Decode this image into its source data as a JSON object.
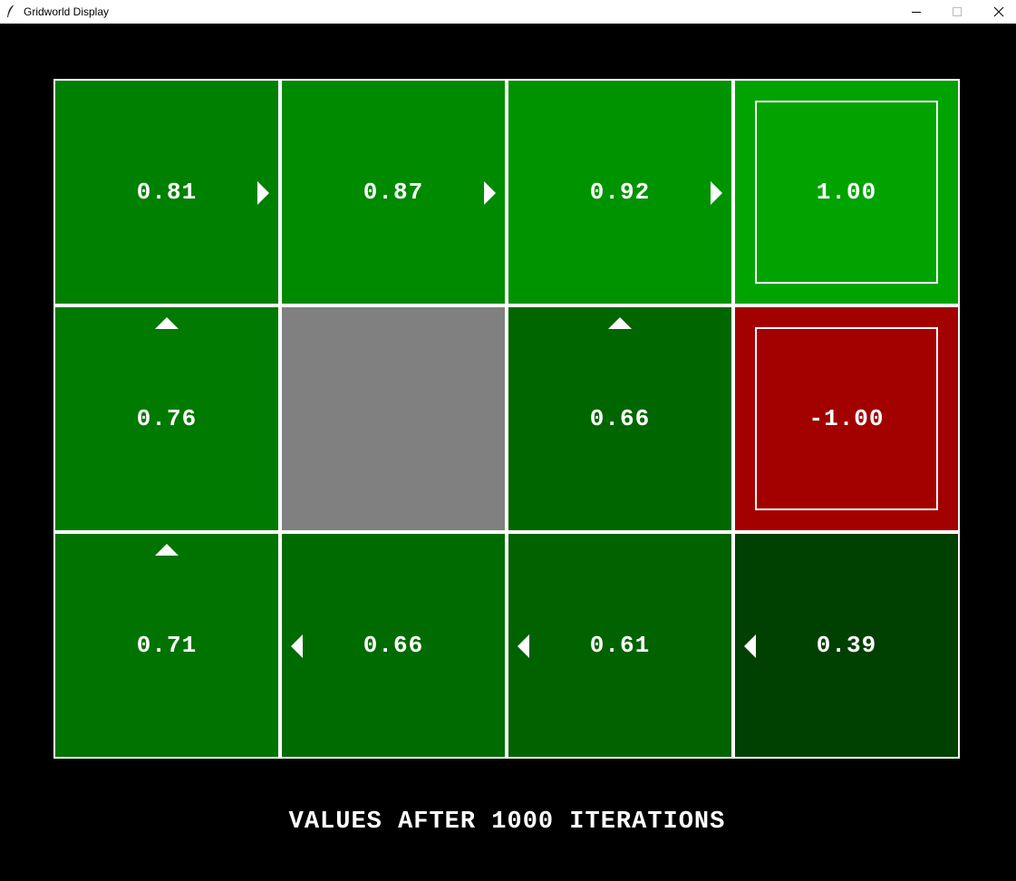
{
  "window": {
    "title": "Gridworld Display",
    "controls": [
      "minimize",
      "maximize",
      "close"
    ]
  },
  "grid": {
    "rows": 3,
    "cols": 4,
    "cells": [
      {
        "row": 0,
        "col": 0,
        "value": "0.81",
        "policy": "right",
        "color": "#008000"
      },
      {
        "row": 0,
        "col": 1,
        "value": "0.87",
        "policy": "right",
        "color": "#008a00"
      },
      {
        "row": 0,
        "col": 2,
        "value": "0.92",
        "policy": "right",
        "color": "#009300"
      },
      {
        "row": 0,
        "col": 3,
        "value": "1.00",
        "policy": "terminal",
        "color": "#00a300"
      },
      {
        "row": 1,
        "col": 0,
        "value": "0.76",
        "policy": "up",
        "color": "#007a00"
      },
      {
        "row": 1,
        "col": 1,
        "value": "",
        "policy": "wall",
        "color": "#808080"
      },
      {
        "row": 1,
        "col": 2,
        "value": "0.66",
        "policy": "up",
        "color": "#006600"
      },
      {
        "row": 1,
        "col": 3,
        "value": "-1.00",
        "policy": "terminal",
        "color": "#a30000"
      },
      {
        "row": 2,
        "col": 0,
        "value": "0.71",
        "policy": "up",
        "color": "#007300"
      },
      {
        "row": 2,
        "col": 1,
        "value": "0.66",
        "policy": "left",
        "color": "#006b00"
      },
      {
        "row": 2,
        "col": 2,
        "value": "0.61",
        "policy": "left",
        "color": "#006300"
      },
      {
        "row": 2,
        "col": 3,
        "value": "0.39",
        "policy": "left",
        "color": "#004000"
      }
    ]
  },
  "footer": {
    "caption": "VALUES AFTER 1000 ITERATIONS"
  }
}
